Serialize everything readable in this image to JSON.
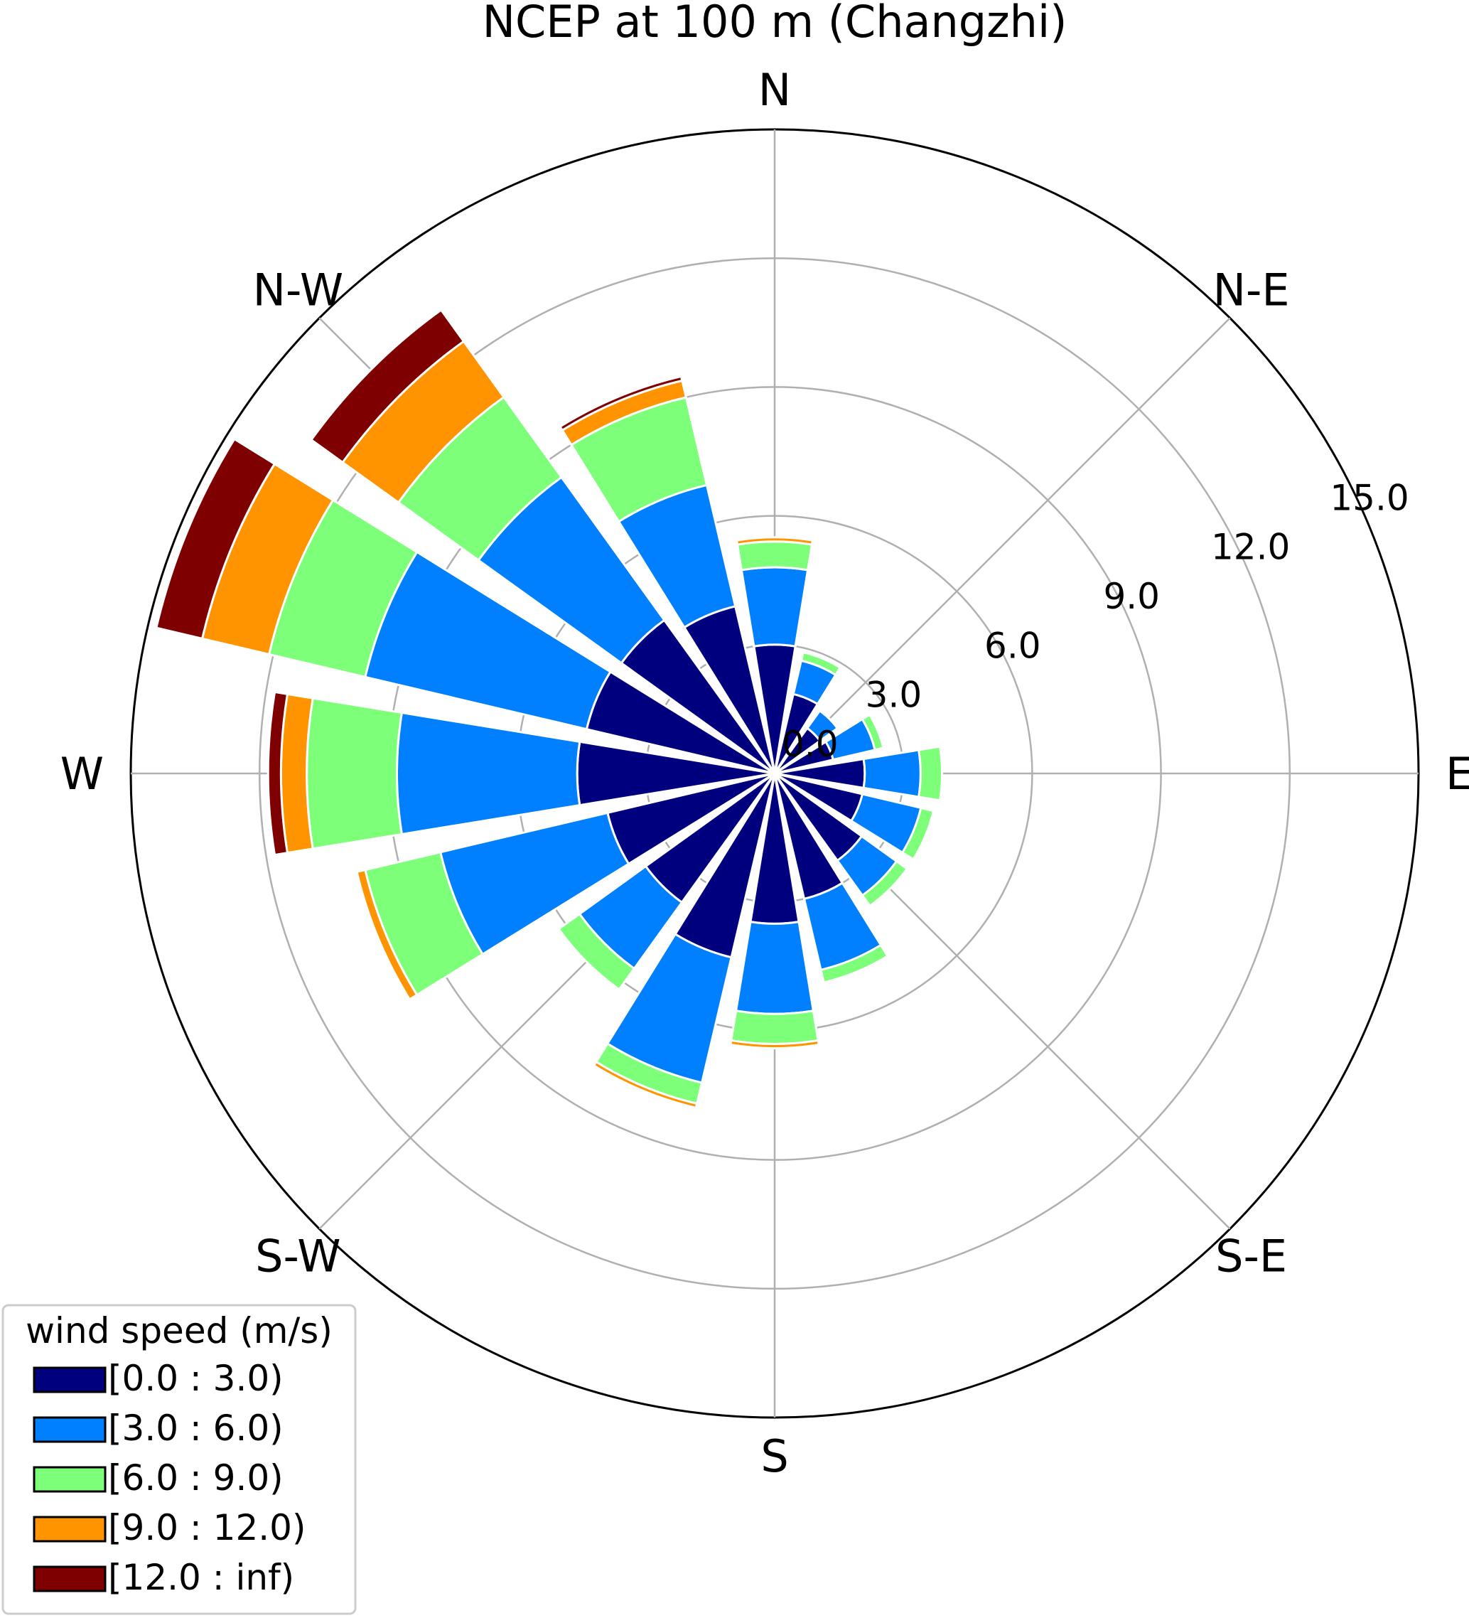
{
  "chart_data": {
    "type": "windrose",
    "title": "NCEP at 100 m (Changzhi)",
    "directions": [
      "N",
      "NNE",
      "NE",
      "ENE",
      "E",
      "ESE",
      "SE",
      "SSE",
      "S",
      "SSW",
      "SW",
      "WSW",
      "W",
      "WNW",
      "NW",
      "NNW"
    ],
    "direction_labels": [
      "N",
      "N-E",
      "E",
      "S-E",
      "S",
      "S-W",
      "W",
      "N-W"
    ],
    "radial_ticks": [
      "0.0",
      "3.0",
      "6.0",
      "9.0",
      "12.0",
      "15.0"
    ],
    "radial_tick_values": [
      0,
      3,
      6,
      9,
      12,
      15
    ],
    "rmax": 15,
    "legend": {
      "title": "wind speed (m/s)",
      "placement": "lower-left",
      "items": [
        {
          "label": "[0.0 : 3.0)",
          "color": "#00007f"
        },
        {
          "label": "[3.0 : 6.0)",
          "color": "#0080ff"
        },
        {
          "label": "[6.0 : 9.0)",
          "color": "#7dff7a"
        },
        {
          "label": "[9.0 : 12.0)",
          "color": "#ff9400"
        },
        {
          "label": "[12.0 : inf)",
          "color": "#7f0000"
        }
      ]
    },
    "series": [
      {
        "name": "[0.0 : 3.0)",
        "values": [
          3.0,
          1.9,
          1.3,
          1.4,
          2.1,
          2.1,
          2.5,
          3.0,
          3.5,
          4.4,
          3.7,
          4.0,
          4.6,
          4.5,
          4.4,
          4.0
        ]
      },
      {
        "name": "[3.0 : 6.0)",
        "values": [
          1.8,
          0.8,
          0.5,
          1.0,
          1.3,
          1.4,
          1.0,
          1.7,
          2.1,
          3.0,
          1.9,
          4.0,
          4.2,
          5.3,
          4.1,
          2.9
        ]
      },
      {
        "name": "[6.0 : 9.0)",
        "values": [
          0.6,
          0.2,
          0.0,
          0.2,
          0.5,
          0.3,
          0.3,
          0.3,
          0.7,
          0.5,
          0.6,
          1.8,
          2.1,
          2.3,
          2.3,
          2.1
        ]
      },
      {
        "name": "[9.0 : 12.0)",
        "values": [
          0.1,
          0.0,
          0.0,
          0.0,
          0.0,
          0.0,
          0.0,
          0.0,
          0.1,
          0.1,
          0.0,
          0.2,
          0.6,
          1.6,
          1.6,
          0.4
        ]
      },
      {
        "name": "[12.0 : inf)",
        "values": [
          0.0,
          0.0,
          0.0,
          0.0,
          0.0,
          0.0,
          0.0,
          0.0,
          0.0,
          0.0,
          0.0,
          0.0,
          0.3,
          1.1,
          0.9,
          0.1
        ]
      }
    ],
    "grid": true
  }
}
